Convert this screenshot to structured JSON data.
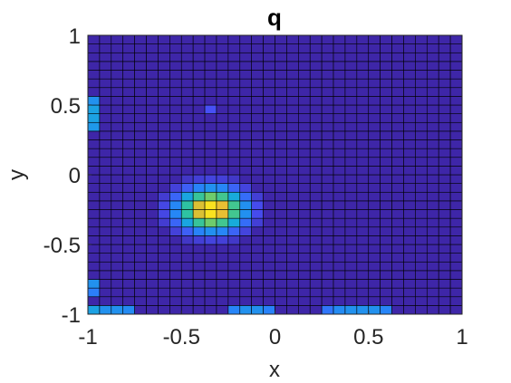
{
  "chart_data": {
    "type": "heatmap",
    "title": "q",
    "xlabel": "x",
    "ylabel": "y",
    "xlim": [
      -1,
      1
    ],
    "ylim": [
      -1,
      1
    ],
    "xticks": [
      "-1",
      "-0.5",
      "0",
      "0.5",
      "1"
    ],
    "yticks": [
      "-1",
      "-0.5",
      "0",
      "0.5",
      "1"
    ],
    "grid_size": [
      32,
      32
    ],
    "colormap": "parula",
    "cell_edge_color": "#000000",
    "background_value": 0.0,
    "blobs": [
      {
        "cx": -0.34,
        "cy": -0.25,
        "sx": 0.12,
        "sy": 0.1,
        "peak": 1.0
      }
    ],
    "hot_cells": [
      {
        "col": 0,
        "row": 21,
        "value": 0.32
      },
      {
        "col": 0,
        "row": 22,
        "value": 0.35
      },
      {
        "col": 0,
        "row": 23,
        "value": 0.35
      },
      {
        "col": 0,
        "row": 24,
        "value": 0.3
      },
      {
        "col": 10,
        "row": 23,
        "value": 0.13
      },
      {
        "col": 0,
        "row": 2,
        "value": 0.24
      },
      {
        "col": 0,
        "row": 3,
        "value": 0.3
      },
      {
        "col": 0,
        "row": 0,
        "value": 0.35
      },
      {
        "col": 1,
        "row": 0,
        "value": 0.3
      },
      {
        "col": 2,
        "row": 0,
        "value": 0.3
      },
      {
        "col": 3,
        "row": 0,
        "value": 0.28
      },
      {
        "col": 12,
        "row": 0,
        "value": 0.26
      },
      {
        "col": 13,
        "row": 0,
        "value": 0.3
      },
      {
        "col": 14,
        "row": 0,
        "value": 0.3
      },
      {
        "col": 15,
        "row": 0,
        "value": 0.25
      },
      {
        "col": 20,
        "row": 0,
        "value": 0.22
      },
      {
        "col": 21,
        "row": 0,
        "value": 0.28
      },
      {
        "col": 22,
        "row": 0,
        "value": 0.3
      },
      {
        "col": 23,
        "row": 0,
        "value": 0.3
      },
      {
        "col": 24,
        "row": 0,
        "value": 0.3
      },
      {
        "col": 25,
        "row": 0,
        "value": 0.26
      }
    ]
  }
}
